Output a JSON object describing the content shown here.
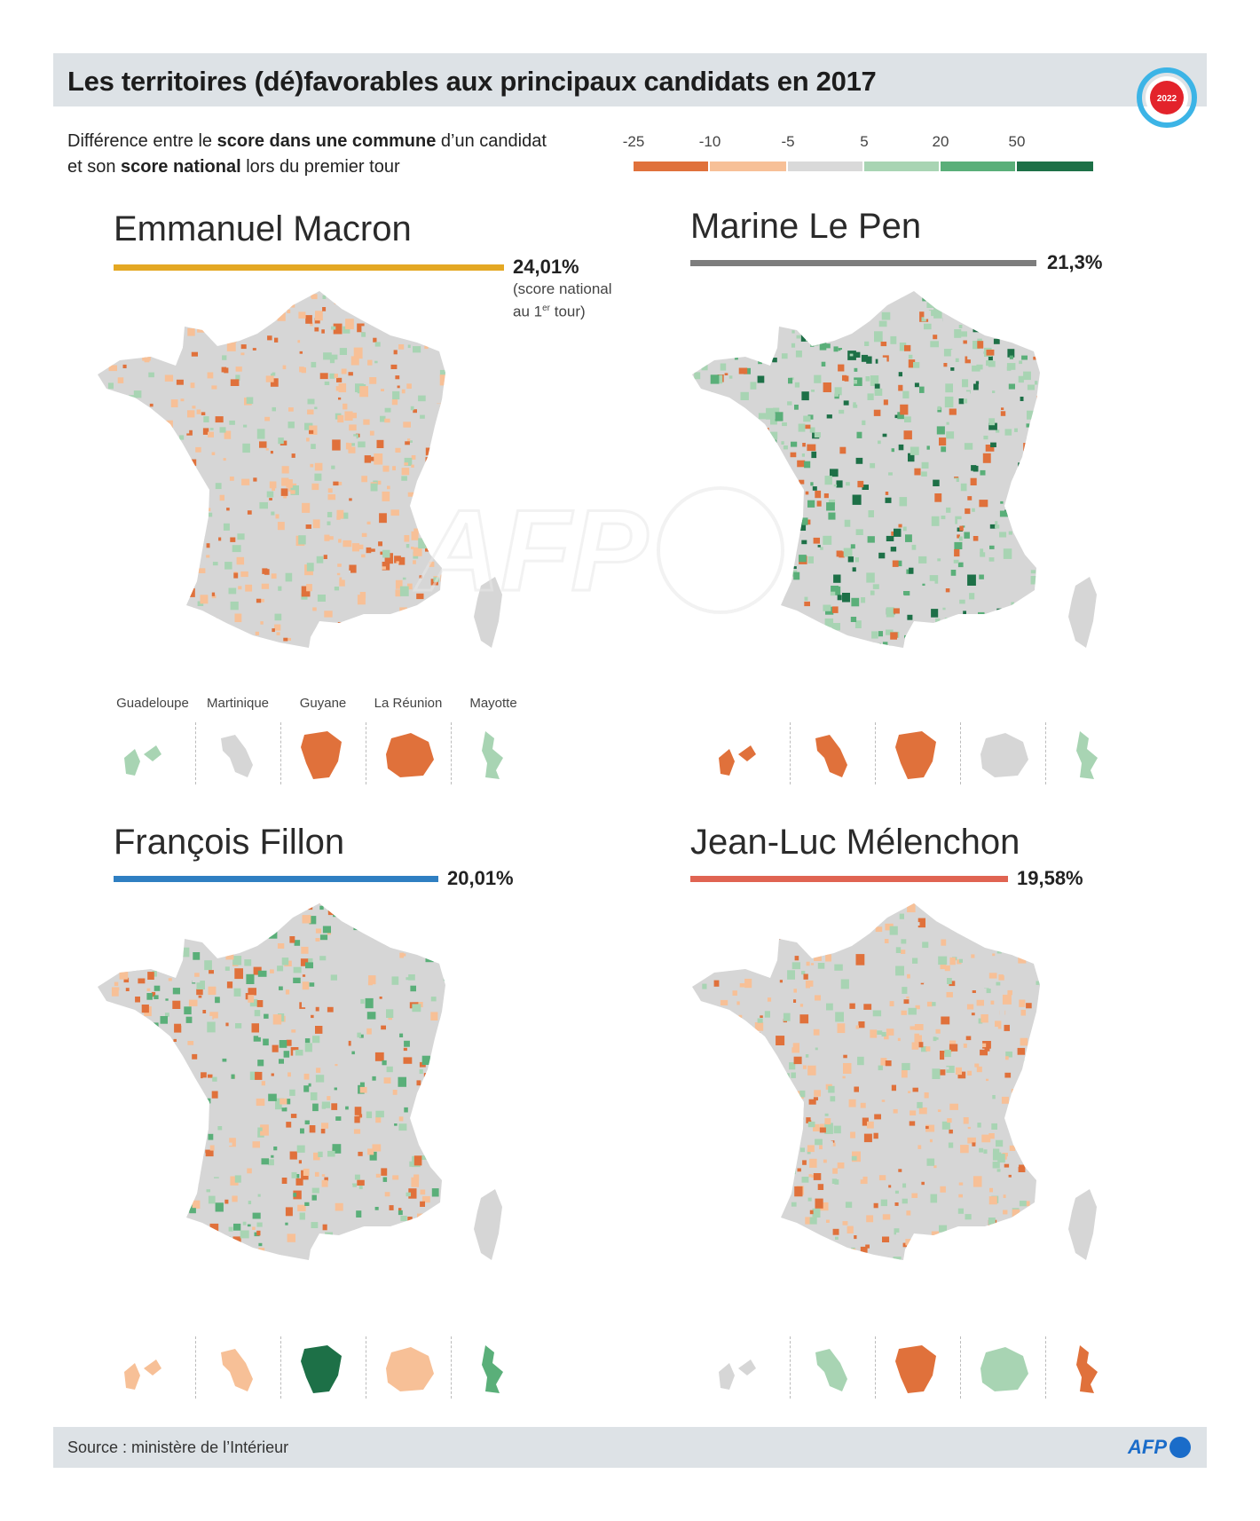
{
  "title": "Les territoires (dé)favorables aux principaux candidats en 2017",
  "subtitle": {
    "line1_pre": "Différence entre le ",
    "line1_bold": "score dans une commune",
    "line1_post": " d’un candidat",
    "line2_pre": "et son ",
    "line2_bold": "score national",
    "line2_post": " lors du premier tour"
  },
  "badge_text": "2022",
  "legend": {
    "ticks": [
      "-25",
      "-10",
      "-5",
      "5",
      "20",
      "50"
    ],
    "colors": [
      "#e0713b",
      "#f7c097",
      "#d9d9d9",
      "#a8d4b3",
      "#5aaf79",
      "#1d7047"
    ]
  },
  "candidates": [
    {
      "name": "Emmanuel Macron",
      "score": "24,01%",
      "bar_color": "#e4a823",
      "note_line1": "(score national",
      "note_line2": "au 1",
      "note_sup": "er",
      "note_line2_end": " tour)",
      "dominant": "orange"
    },
    {
      "name": "Marine Le Pen",
      "score": "21,3%",
      "bar_color": "#7d7d7d",
      "dominant": "green"
    },
    {
      "name": "François Fillon",
      "score": "20,01%",
      "bar_color": "#2f7fc2",
      "dominant": "mixed"
    },
    {
      "name": "Jean-Luc Mélenchon",
      "score": "19,58%",
      "bar_color": "#e06452",
      "dominant": "orange"
    }
  ],
  "overseas": [
    "Guadeloupe",
    "Martinique",
    "Guyane",
    "La Réunion",
    "Mayotte"
  ],
  "watermark": "AFP",
  "source": "Source : ministère de l’Intérieur",
  "logo_text": "AFP",
  "colors": {
    "header_bg": "#dde2e6",
    "base_gray": "#d6d6d6",
    "orange_strong": "#e0713b",
    "orange_light": "#f7c097",
    "green_light": "#a8d4b3",
    "green_mid": "#5aaf79",
    "green_dark": "#1d7047"
  }
}
